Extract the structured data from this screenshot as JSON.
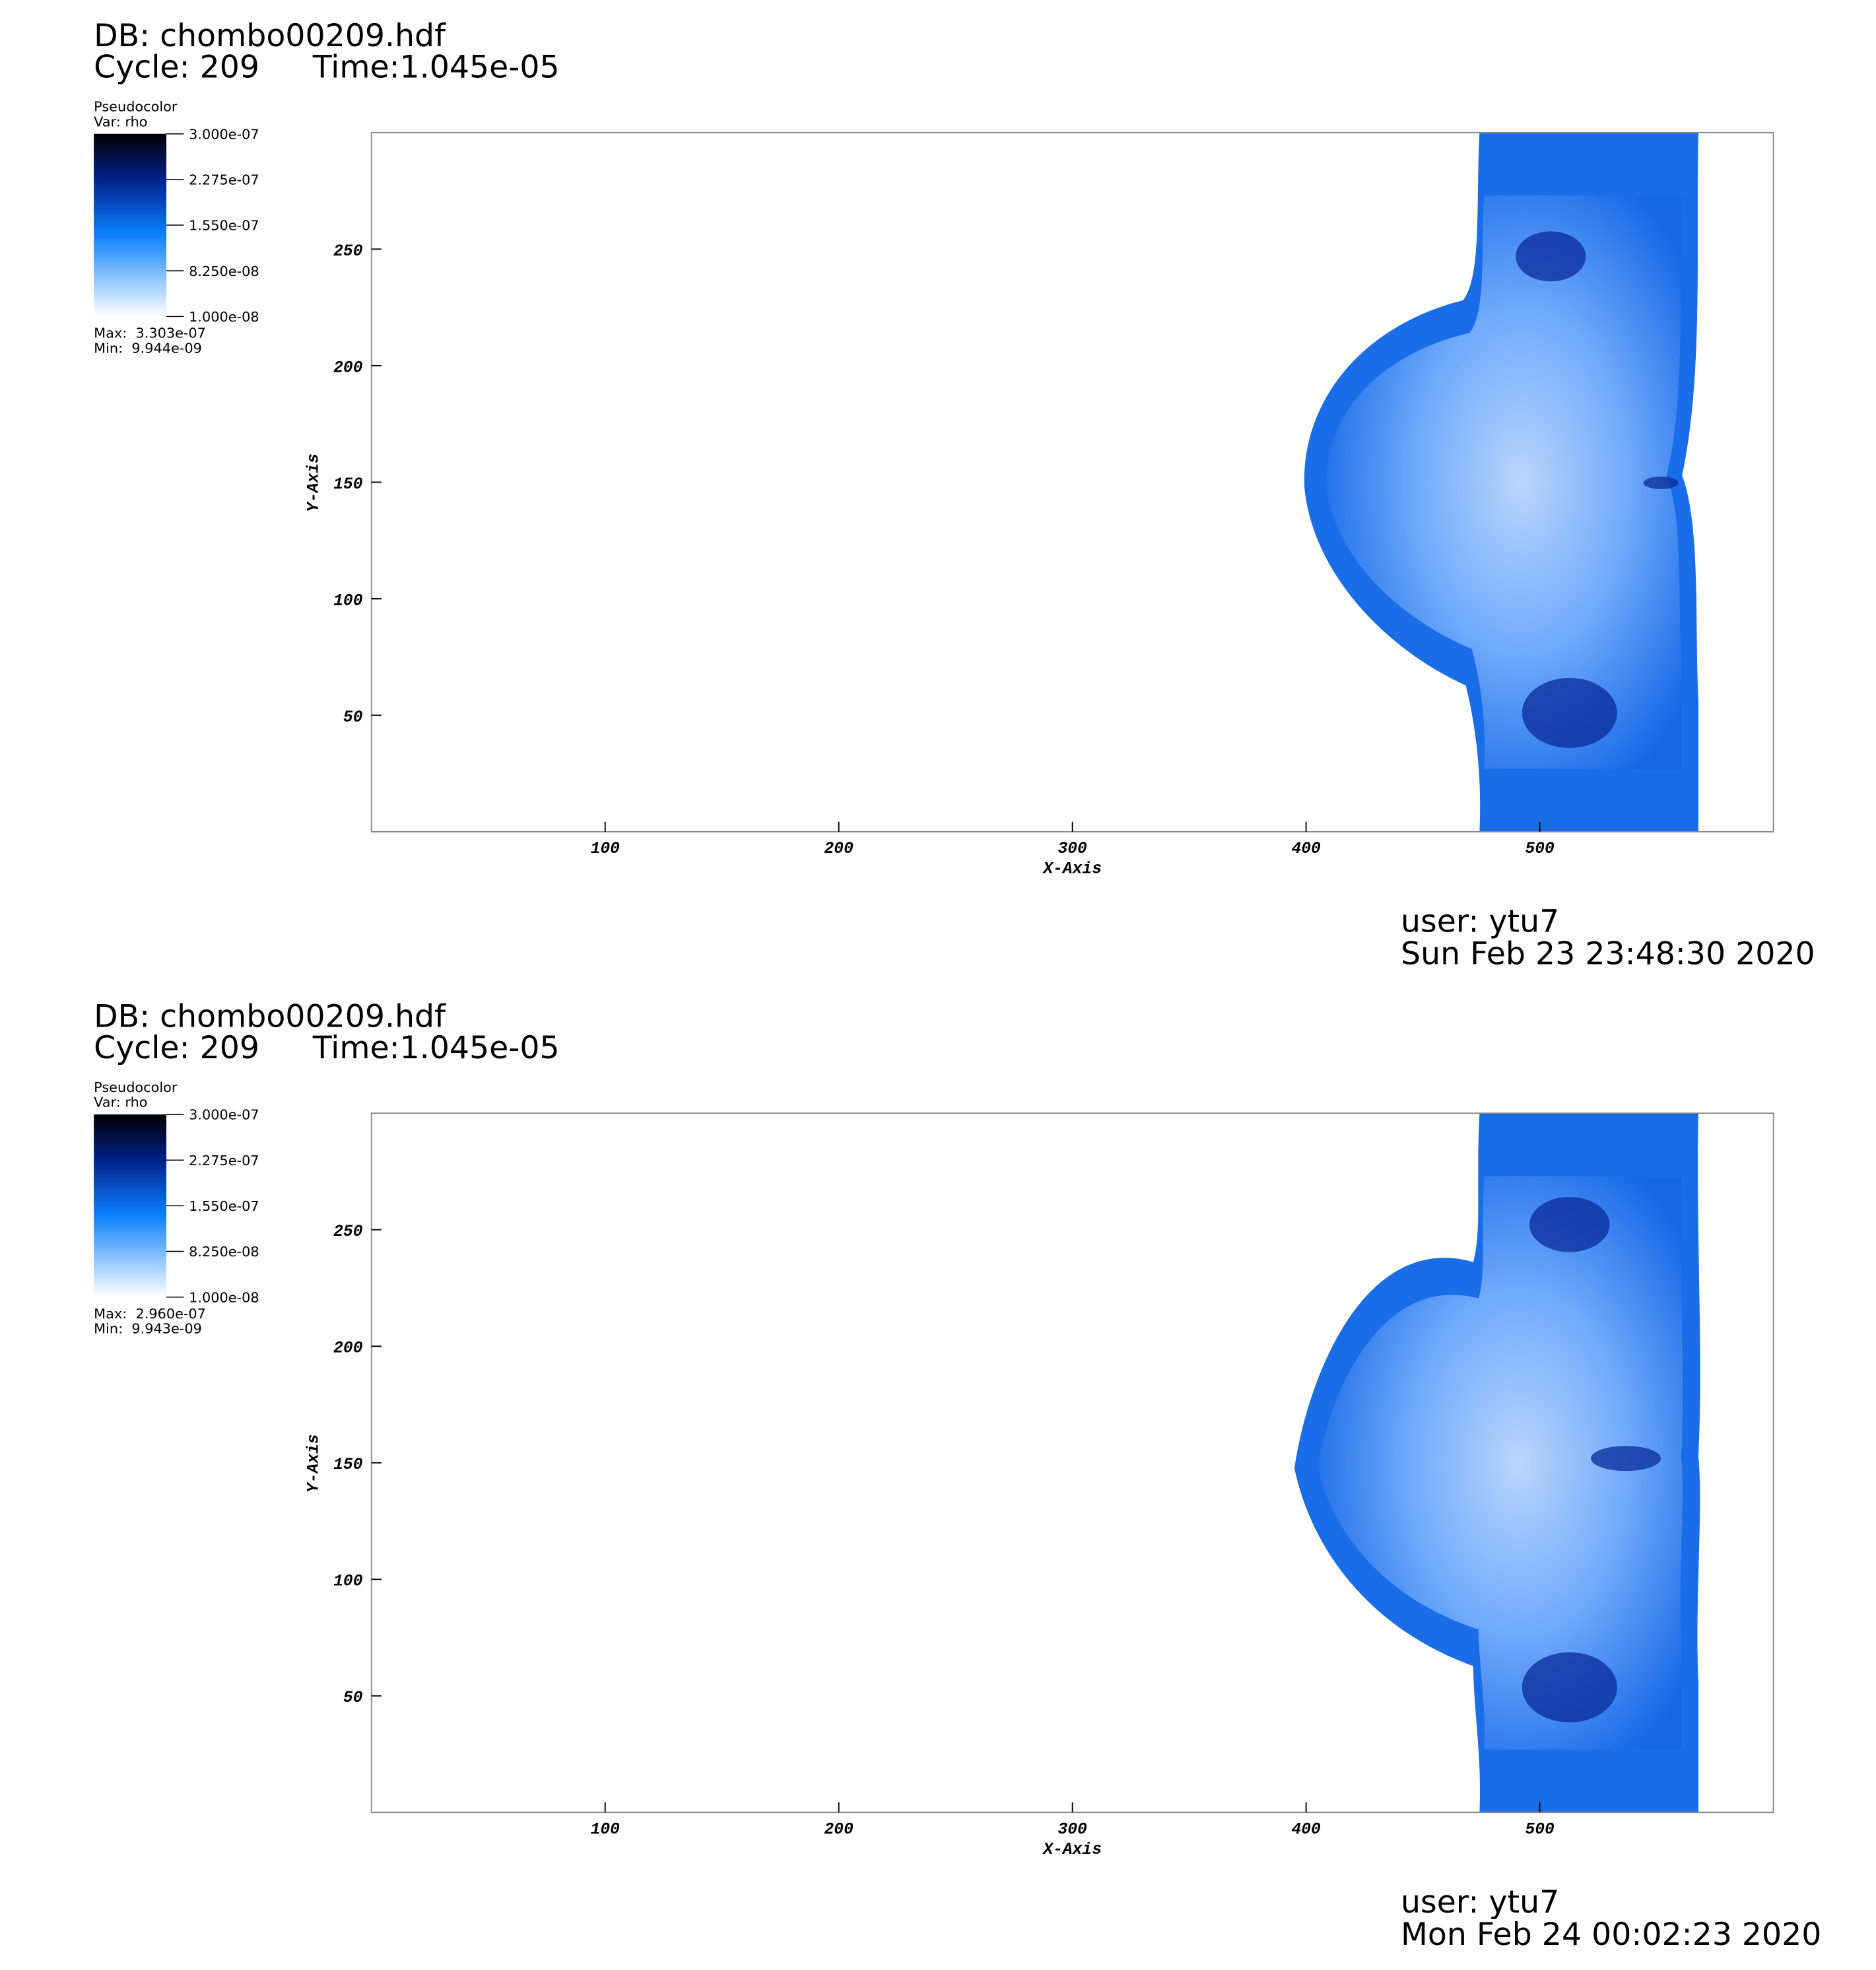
{
  "chart_data": [
    {
      "type": "pseudocolor",
      "db": "DB: chombo00209.hdf",
      "cycle": "Cycle: 209",
      "time": "Time:1.045e-05",
      "legend_title": "Pseudocolor",
      "variable": "Var: rho",
      "colorbar_lim": [
        1e-08,
        3e-07
      ],
      "colorbar_ticks": [
        {
          "value": 3e-07,
          "label": "3.000e-07"
        },
        {
          "value": 2.275e-07,
          "label": "2.275e-07"
        },
        {
          "value": 1.55e-07,
          "label": "1.550e-07"
        },
        {
          "value": 8.25e-08,
          "label": "8.250e-08"
        },
        {
          "value": 1e-08,
          "label": "1.000e-08"
        }
      ],
      "max": "Max:  3.303e-07",
      "min": "Min:  9.944e-09",
      "xlabel": "X-Axis",
      "ylabel": "Y-Axis",
      "xlim": [
        0,
        600
      ],
      "ylim": [
        0,
        300
      ],
      "xticks": [
        100,
        200,
        300,
        400,
        500
      ],
      "yticks": [
        50,
        100,
        150,
        200,
        250
      ],
      "user": "user: ytu7",
      "date": "Sun Feb 23 23:48:30 2020"
    },
    {
      "type": "pseudocolor",
      "db": "DB: chombo00209.hdf",
      "cycle": "Cycle: 209",
      "time": "Time:1.045e-05",
      "legend_title": "Pseudocolor",
      "variable": "Var: rho",
      "colorbar_lim": [
        1e-08,
        3e-07
      ],
      "colorbar_ticks": [
        {
          "value": 3e-07,
          "label": "3.000e-07"
        },
        {
          "value": 2.275e-07,
          "label": "2.275e-07"
        },
        {
          "value": 1.55e-07,
          "label": "1.550e-07"
        },
        {
          "value": 8.25e-08,
          "label": "8.250e-08"
        },
        {
          "value": 1e-08,
          "label": "1.000e-08"
        }
      ],
      "max": "Max:  2.960e-07",
      "min": "Min:  9.943e-09",
      "xlabel": "X-Axis",
      "ylabel": "Y-Axis",
      "xlim": [
        0,
        600
      ],
      "ylim": [
        0,
        300
      ],
      "xticks": [
        100,
        200,
        300,
        400,
        500
      ],
      "yticks": [
        50,
        100,
        150,
        200,
        250
      ],
      "user": "user: ytu7",
      "date": "Mon Feb 24 00:02:23 2020"
    }
  ]
}
